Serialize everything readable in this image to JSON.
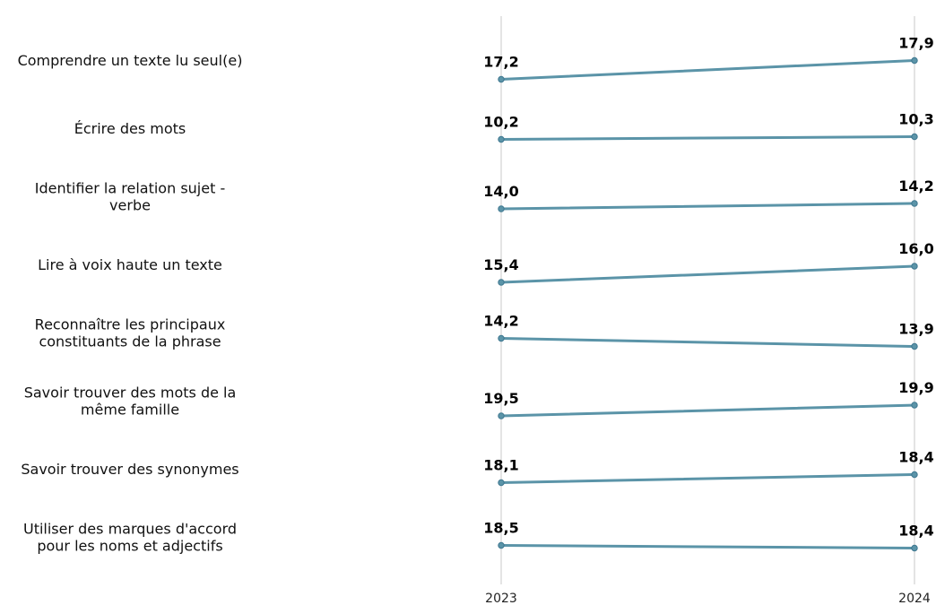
{
  "chart_data": {
    "type": "line",
    "x": [
      "2023",
      "2024"
    ],
    "series": [
      {
        "name": "Comprendre un texte lu seul(e)",
        "label_lines": [
          "Comprendre un texte lu seul(e)"
        ],
        "values": [
          17.2,
          17.9
        ],
        "value_labels": [
          "17,2",
          "17,9"
        ]
      },
      {
        "name": "Écrire des mots",
        "label_lines": [
          "Écrire des mots"
        ],
        "values": [
          10.2,
          10.3
        ],
        "value_labels": [
          "10,2",
          "10,3"
        ]
      },
      {
        "name": "Identifier la relation sujet - verbe",
        "label_lines": [
          "Identifier la relation sujet -",
          "verbe"
        ],
        "values": [
          14.0,
          14.2
        ],
        "value_labels": [
          "14,0",
          "14,2"
        ]
      },
      {
        "name": "Lire à voix haute un texte",
        "label_lines": [
          "Lire à voix haute un texte"
        ],
        "values": [
          15.4,
          16.0
        ],
        "value_labels": [
          "15,4",
          "16,0"
        ]
      },
      {
        "name": "Reconnaître les principaux constituants de la phrase",
        "label_lines": [
          "Reconnaître les principaux",
          "constituants de la phrase"
        ],
        "values": [
          14.2,
          13.9
        ],
        "value_labels": [
          "14,2",
          "13,9"
        ]
      },
      {
        "name": "Savoir trouver des mots de la même famille",
        "label_lines": [
          "Savoir trouver des mots de la",
          "même famille"
        ],
        "values": [
          19.5,
          19.9
        ],
        "value_labels": [
          "19,5",
          "19,9"
        ]
      },
      {
        "name": "Savoir trouver des synonymes",
        "label_lines": [
          "Savoir trouver des synonymes"
        ],
        "values": [
          18.1,
          18.4
        ],
        "value_labels": [
          "18,1",
          "18,4"
        ]
      },
      {
        "name": "Utiliser des marques d'accord pour les noms et adjectifs",
        "label_lines": [
          "Utiliser des marques d'accord",
          "pour les noms et adjectifs"
        ],
        "values": [
          18.5,
          18.4
        ],
        "value_labels": [
          "18,5",
          "18,4"
        ]
      }
    ],
    "title": "",
    "xlabel": "",
    "ylabel": "",
    "grid": "vertical lines at each year",
    "legend": "none",
    "colors": {
      "line": "#5b94a8",
      "marker_edge": "#3f7890",
      "grid": "#c8c8c8"
    }
  }
}
